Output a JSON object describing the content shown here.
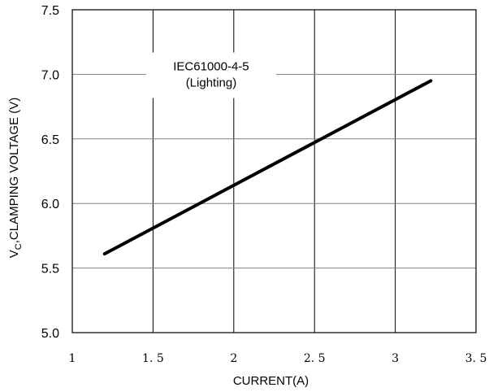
{
  "chart_data": {
    "type": "line",
    "title": "",
    "xlabel": "CURRENT(A)",
    "ylabel": {
      "prefix": "V",
      "subscript": "C",
      "rest": ",CLAMPING VOLTAGE  (V)"
    },
    "xlim": [
      1,
      3.5
    ],
    "ylim": [
      5.0,
      7.5
    ],
    "x_ticks": [
      "1",
      "1. 5",
      "2",
      "2. 5",
      "3",
      "3. 5"
    ],
    "x_tick_values": [
      1,
      1.5,
      2,
      2.5,
      3,
      3.5
    ],
    "y_ticks": [
      "5.0",
      "5.5",
      "6.0",
      "6.5",
      "7.0",
      "7.5"
    ],
    "y_tick_values": [
      5.0,
      5.5,
      6.0,
      6.5,
      7.0,
      7.5
    ],
    "grid": true,
    "annotation": {
      "lines": [
        "IEC61000-4-5",
        "(Lighting)"
      ],
      "x": 1.86,
      "y": 6.98
    },
    "series": [
      {
        "x": [
          1.2,
          3.22
        ],
        "y": [
          5.61,
          6.95
        ],
        "color": "#000000"
      }
    ]
  }
}
